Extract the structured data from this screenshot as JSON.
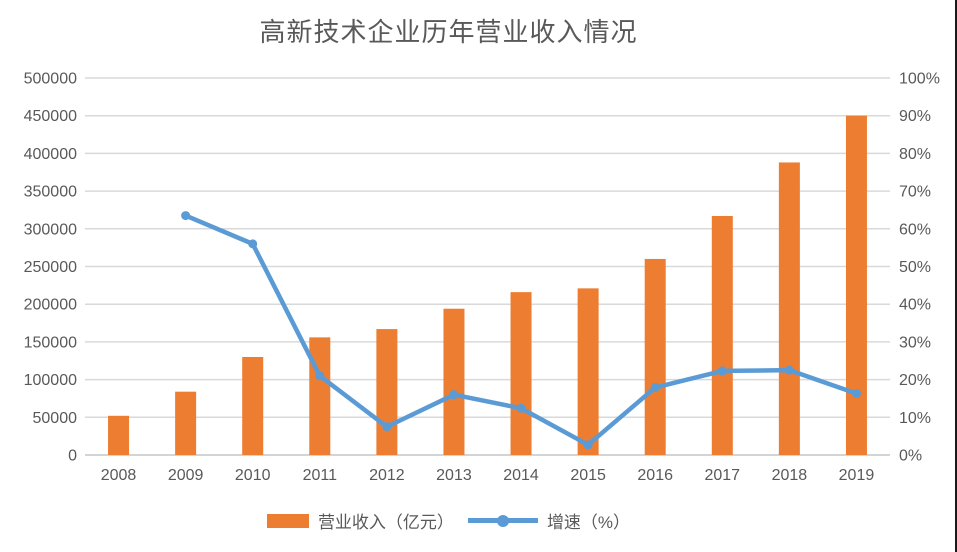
{
  "chart_data": {
    "type": "bar",
    "subtype": "combo-bar-line-dual-axis",
    "title": "高新技术企业历年营业收入情况",
    "categories": [
      "2008",
      "2009",
      "2010",
      "2011",
      "2012",
      "2013",
      "2014",
      "2015",
      "2016",
      "2017",
      "2018",
      "2019"
    ],
    "series": [
      {
        "name": "营业收入（亿元）",
        "type": "bar",
        "axis": "left",
        "color": "#ED7D31",
        "values": [
          52000,
          84000,
          130000,
          156000,
          167000,
          194000,
          216000,
          221000,
          260000,
          317000,
          388000,
          450000
        ]
      },
      {
        "name": "增速（%）",
        "type": "line",
        "axis": "right",
        "color": "#5B9BD5",
        "values": [
          null,
          63.5,
          56,
          21,
          7.5,
          16,
          12.4,
          2.7,
          17.9,
          22.3,
          22.5,
          16.3
        ]
      }
    ],
    "y_left": {
      "min": 0,
      "max": 500000,
      "step": 50000,
      "ticks": [
        "500000",
        "450000",
        "400000",
        "350000",
        "300000",
        "250000",
        "200000",
        "150000",
        "100000",
        "50000",
        "0"
      ]
    },
    "y_right": {
      "min": 0,
      "max": 100,
      "step": 10,
      "ticks": [
        "100%",
        "90%",
        "80%",
        "70%",
        "60%",
        "50%",
        "40%",
        "30%",
        "20%",
        "10%",
        "0%"
      ]
    },
    "grid": "on",
    "legend_position": "bottom",
    "colors": {
      "gridline": "#D9D9D9",
      "axis_line": "#C6C6C6",
      "axis_text": "#595959",
      "title_text": "#595959",
      "page_border_right": "#1a1a1a"
    }
  }
}
